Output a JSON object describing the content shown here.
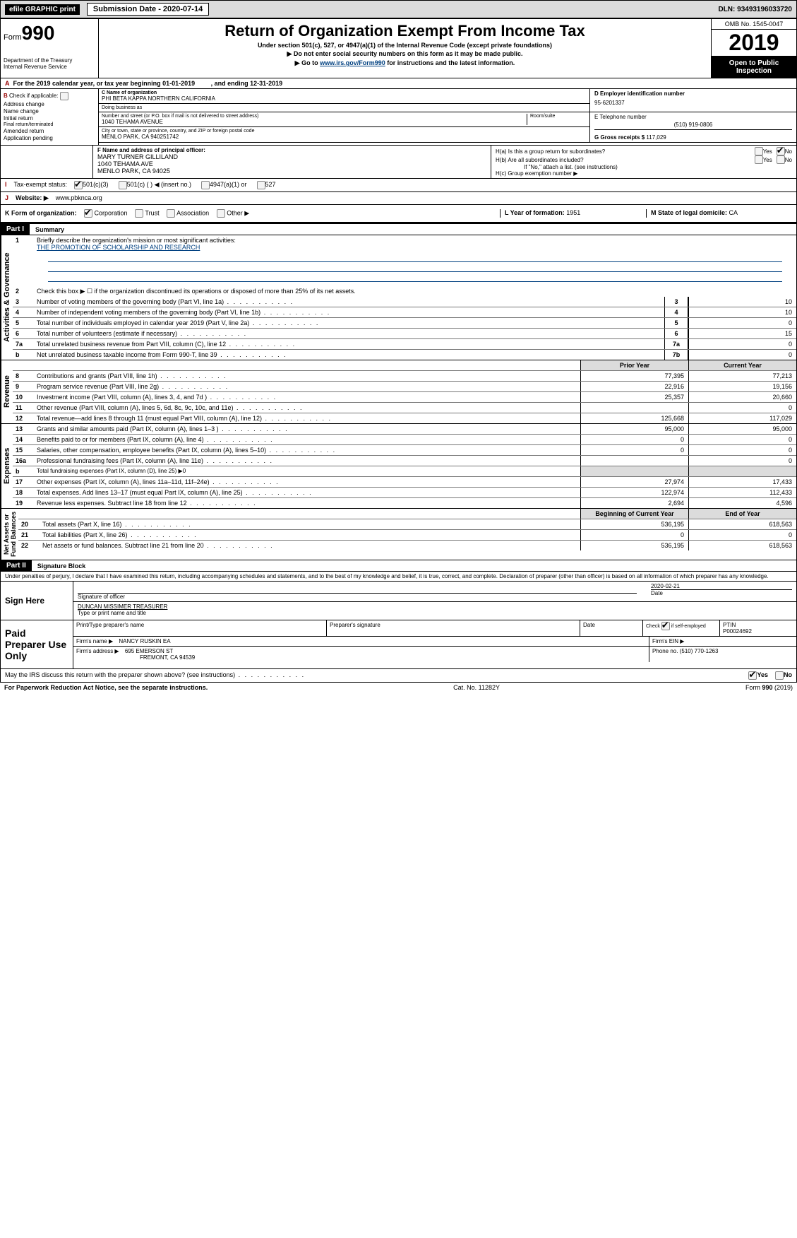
{
  "header": {
    "efile": "efile GRAPHIC print",
    "submission": "Submission Date - 2020-07-14",
    "dln": "DLN: 93493196033720"
  },
  "formbox": {
    "form_label": "Form",
    "form_num": "990",
    "dept": "Department of the Treasury\nInternal Revenue Service",
    "title": "Return of Organization Exempt From Income Tax",
    "sub1": "Under section 501(c), 527, or 4947(a)(1) of the Internal Revenue Code (except private foundations)",
    "sub2": "▶ Do not enter social security numbers on this form as it may be made public.",
    "sub3_prefix": "▶ Go to ",
    "sub3_link": "www.irs.gov/Form990",
    "sub3_suffix": " for instructions and the latest information.",
    "omb": "OMB No. 1545-0047",
    "year": "2019",
    "open": "Open to Public Inspection"
  },
  "A": {
    "text": "For the 2019 calendar year, or tax year beginning 01-01-2019",
    "ending": ", and ending 12-31-2019"
  },
  "B": {
    "label": "Check if applicable:",
    "items": [
      "Address change",
      "Name change",
      "Initial return",
      "Final return/terminated",
      "Amended return",
      "Application pending"
    ]
  },
  "C": {
    "name_label": "C Name of organization",
    "name": "PHI BETA KAPPA NORTHERN CALIFORNIA",
    "dba_label": "Doing business as",
    "addr_label": "Number and street (or P.O. box if mail is not delivered to street address)",
    "room_label": "Room/suite",
    "addr": "1040 TEHAMA AVENUE",
    "city_label": "City or town, state or province, country, and ZIP or foreign postal code",
    "city": "MENLO PARK, CA  940251742"
  },
  "D": {
    "label": "D Employer identification number",
    "value": "95-6201337"
  },
  "E": {
    "label": "E Telephone number",
    "value": "(510) 919-0806"
  },
  "G": {
    "label": "G Gross receipts $",
    "value": "117,029"
  },
  "F": {
    "label": "F  Name and address of principal officer:",
    "name": "MARY TURNER GILLILAND",
    "addr1": "1040 TEHAMA AVE",
    "addr2": "MENLO PARK, CA  94025"
  },
  "H": {
    "a": "H(a)   Is this a group return for subordinates?",
    "b": "H(b)   Are all subordinates included?",
    "b2": "If \"No,\" attach a list. (see instructions)",
    "c": "H(c)   Group exemption number ▶"
  },
  "I": {
    "label": "Tax-exempt status:",
    "opts": [
      "501(c)(3)",
      "501(c) (  ) ◀ (insert no.)",
      "4947(a)(1) or",
      "527"
    ]
  },
  "J": {
    "label": "Website: ▶",
    "value": "www.pbknca.org"
  },
  "K": {
    "label": "K Form of organization:",
    "opts": [
      "Corporation",
      "Trust",
      "Association",
      "Other ▶"
    ]
  },
  "L": {
    "label": "L Year of formation:",
    "value": "1951"
  },
  "M": {
    "label": "M State of legal domicile:",
    "value": "CA"
  },
  "part1": {
    "header": "Part I",
    "title": "Summary",
    "q1": "Briefly describe the organization's mission or most significant activities:",
    "mission": "THE PROMOTION OF SCHOLARSHIP AND RESEARCH",
    "q2": "Check this box ▶ ☐  if the organization discontinued its operations or disposed of more than 25% of its net assets."
  },
  "governance": [
    {
      "n": "3",
      "t": "Number of voting members of the governing body (Part VI, line 1a)",
      "c": "3",
      "v": "10"
    },
    {
      "n": "4",
      "t": "Number of independent voting members of the governing body (Part VI, line 1b)",
      "c": "4",
      "v": "10"
    },
    {
      "n": "5",
      "t": "Total number of individuals employed in calendar year 2019 (Part V, line 2a)",
      "c": "5",
      "v": "0"
    },
    {
      "n": "6",
      "t": "Total number of volunteers (estimate if necessary)",
      "c": "6",
      "v": "15"
    },
    {
      "n": "7a",
      "t": "Total unrelated business revenue from Part VIII, column (C), line 12",
      "c": "7a",
      "v": "0"
    },
    {
      "n": "b",
      "t": "Net unrelated business taxable income from Form 990-T, line 39",
      "c": "7b",
      "v": "0"
    }
  ],
  "prior_current": {
    "prior": "Prior Year",
    "current": "Current Year"
  },
  "revenue": [
    {
      "n": "8",
      "t": "Contributions and grants (Part VIII, line 1h)",
      "p": "77,395",
      "c": "77,213"
    },
    {
      "n": "9",
      "t": "Program service revenue (Part VIII, line 2g)",
      "p": "22,916",
      "c": "19,156"
    },
    {
      "n": "10",
      "t": "Investment income (Part VIII, column (A), lines 3, 4, and 7d )",
      "p": "25,357",
      "c": "20,660"
    },
    {
      "n": "11",
      "t": "Other revenue (Part VIII, column (A), lines 5, 6d, 8c, 9c, 10c, and 11e)",
      "p": "",
      "c": "0"
    },
    {
      "n": "12",
      "t": "Total revenue—add lines 8 through 11 (must equal Part VIII, column (A), line 12)",
      "p": "125,668",
      "c": "117,029"
    }
  ],
  "expenses": [
    {
      "n": "13",
      "t": "Grants and similar amounts paid (Part IX, column (A), lines 1–3 )",
      "p": "95,000",
      "c": "95,000"
    },
    {
      "n": "14",
      "t": "Benefits paid to or for members (Part IX, column (A), line 4)",
      "p": "0",
      "c": "0"
    },
    {
      "n": "15",
      "t": "Salaries, other compensation, employee benefits (Part IX, column (A), lines 5–10)",
      "p": "0",
      "c": "0"
    },
    {
      "n": "16a",
      "t": "Professional fundraising fees (Part IX, column (A), line 11e)",
      "p": "",
      "c": "0"
    },
    {
      "n": "b",
      "t": "Total fundraising expenses (Part IX, column (D), line 25) ▶0",
      "p": "GRAY",
      "c": "GRAY"
    },
    {
      "n": "17",
      "t": "Other expenses (Part IX, column (A), lines 11a–11d, 11f–24e)",
      "p": "27,974",
      "c": "17,433"
    },
    {
      "n": "18",
      "t": "Total expenses. Add lines 13–17 (must equal Part IX, column (A), line 25)",
      "p": "122,974",
      "c": "112,433"
    },
    {
      "n": "19",
      "t": "Revenue less expenses. Subtract line 18 from line 12",
      "p": "2,694",
      "c": "4,596"
    }
  ],
  "nethead": {
    "begin": "Beginning of Current Year",
    "end": "End of Year"
  },
  "netassets": [
    {
      "n": "20",
      "t": "Total assets (Part X, line 16)",
      "p": "536,195",
      "c": "618,563"
    },
    {
      "n": "21",
      "t": "Total liabilities (Part X, line 26)",
      "p": "0",
      "c": "0"
    },
    {
      "n": "22",
      "t": "Net assets or fund balances. Subtract line 21 from line 20",
      "p": "536,195",
      "c": "618,563"
    }
  ],
  "part2": {
    "header": "Part II",
    "title": "Signature Block",
    "perjury": "Under penalties of perjury, I declare that I have examined this return, including accompanying schedules and statements, and to the best of my knowledge and belief, it is true, correct, and complete. Declaration of preparer (other than officer) is based on all information of which preparer has any knowledge."
  },
  "sign": {
    "label": "Sign Here",
    "sig_officer": "Signature of officer",
    "date": "2020-02-21",
    "date_label": "Date",
    "name": "DUNCAN MISSIMER  TREASURER",
    "name_label": "Type or print name and title"
  },
  "paid": {
    "label": "Paid Preparer Use Only",
    "h1": "Print/Type preparer's name",
    "h2": "Preparer's signature",
    "h3": "Date",
    "h4": "Check ☑ if self-employed",
    "h5": "PTIN",
    "ptin": "P00024692",
    "firm_label": "Firm's name    ▶",
    "firm": "NANCY RUSKIN EA",
    "ein_label": "Firm's EIN ▶",
    "addr_label": "Firm's address ▶",
    "addr": "695 EMERSON ST",
    "addr2": "FREMONT, CA  94539",
    "phone_label": "Phone no.",
    "phone": "(510) 770-1263"
  },
  "footer": {
    "discuss": "May the IRS discuss this return with the preparer shown above? (see instructions)",
    "paperwork": "For Paperwork Reduction Act Notice, see the separate instructions.",
    "cat": "Cat. No. 11282Y",
    "form": "Form 990 (2019)"
  }
}
